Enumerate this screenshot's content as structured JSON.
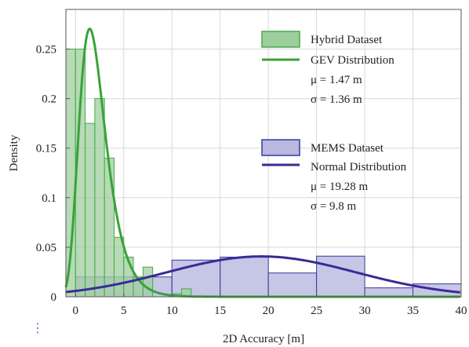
{
  "chart_data": {
    "type": "bar",
    "xlabel": "2D Accuracy [m]",
    "ylabel": "Density",
    "xlim": [
      -1,
      40
    ],
    "ylim": [
      0,
      0.29
    ],
    "xticks": [
      0,
      5,
      10,
      15,
      20,
      25,
      30,
      35,
      40
    ],
    "yticks": [
      {
        "value": 0,
        "label": "0"
      },
      {
        "value": 0.05,
        "label": "0.05"
      },
      {
        "value": 0.1,
        "label": "0.1"
      },
      {
        "value": 0.15,
        "label": "0.15"
      },
      {
        "value": 0.2,
        "label": "0.2"
      },
      {
        "value": 0.25,
        "label": "0.25"
      }
    ],
    "grid": true,
    "legend_position": "right",
    "series": [
      {
        "name": "Hybrid Dataset",
        "kind": "histogram",
        "color": "#9dcf9d",
        "edge": "#4aa84a",
        "bin_edges": [
          -1,
          0,
          1,
          2,
          3,
          4,
          5,
          6,
          7,
          8,
          9,
          10,
          11,
          12,
          13
        ],
        "values": [
          0.25,
          0.25,
          0.175,
          0.2,
          0.14,
          0.06,
          0.04,
          0.02,
          0.03,
          0.0,
          0.0,
          0.003,
          0.008,
          0.0
        ]
      },
      {
        "name": "GEV Distribution",
        "kind": "curve",
        "color": "#3aa23a",
        "distribution": "gev",
        "mu": 1.47,
        "sigma": 1.36
      },
      {
        "name": "MEMS Dataset",
        "kind": "histogram",
        "color": "#b8b8e0",
        "edge": "#3a3a9a",
        "bin_edges": [
          0,
          10,
          15,
          20,
          25,
          30,
          35,
          40
        ],
        "values": [
          0.02,
          0.037,
          0.04,
          0.024,
          0.041,
          0.009,
          0.013
        ]
      },
      {
        "name": "Normal Distribution",
        "kind": "curve",
        "color": "#3a2a96",
        "distribution": "normal",
        "mu": 19.28,
        "sigma": 9.8
      }
    ],
    "legend": {
      "group1": {
        "patch_label": "Hybrid Dataset",
        "line_label": "GEV Distribution",
        "stat1": "μ = 1.47 m",
        "stat2": "σ = 1.36 m"
      },
      "group2": {
        "patch_label": "MEMS Dataset",
        "line_label": "Normal Distribution",
        "stat1": "μ = 19.28 m",
        "stat2": "σ = 9.8 m"
      }
    }
  },
  "footer": {
    "more_icon": "vertical-ellipsis-icon",
    "more_glyph": "⋮"
  }
}
